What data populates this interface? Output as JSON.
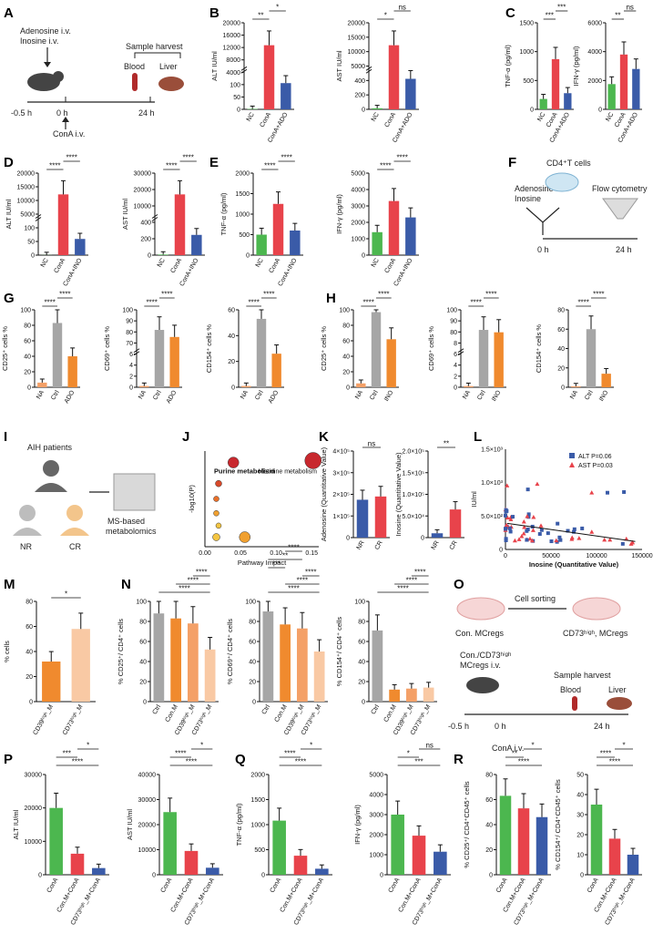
{
  "panel_letters": [
    "A",
    "B",
    "C",
    "D",
    "E",
    "F",
    "G",
    "H",
    "I",
    "J",
    "K",
    "L",
    "M",
    "N",
    "O",
    "P",
    "Q",
    "R"
  ],
  "colors": {
    "green": "#4cb74f",
    "red": "#e8434b",
    "blue": "#3a5ba8",
    "gray": "#a6a6a6",
    "orange": "#f08a2e",
    "peach": "#f4a067",
    "light": "#f9c9a4",
    "yellow": "#f4c542",
    "darkred": "#c8282e"
  },
  "panelA": {
    "drug": "Adenosine i.v.",
    "drug2": "Inosine i.v.",
    "harvest": "Sample harvest",
    "blood": "Blood",
    "liver": "Liver",
    "t1": "-0.5 h",
    "t2": "0 h",
    "t3": "24 h",
    "conA": "ConA  i.v."
  },
  "panelF": {
    "drug": "Adenosine",
    "drug2": "Inosine",
    "cells": "CD4⁺T cells",
    "flow": "Flow cytometry",
    "t1": "0 h",
    "t2": "24 h"
  },
  "panelI": {
    "title": "AIH patients",
    "nr": "NR",
    "cr": "CR",
    "ms": "MS-based",
    "ms2": "metabolomics"
  },
  "panelO": {
    "sort": "Cell sorting",
    "a": "Con. MCregs",
    "b": "CD73ʰⁱᵍʰ, MCregs",
    "c": "Con./CD73ʰⁱᵍʰ",
    "d": "MCregs i.v.",
    "harvest": "Sample harvest",
    "blood": "Blood",
    "liver": "Liver",
    "t1": "-0.5 h",
    "t2": "0 h",
    "t3": "24 h",
    "conA": "ConA  i.v."
  },
  "chart_data": [
    {
      "id": "B1",
      "type": "bar",
      "ylabel": "ALT IU/ml",
      "categories": [
        "NC",
        "ConA",
        "ConA+ADO"
      ],
      "values": [
        60,
        8800,
        3600
      ],
      "ticks_top": [
        "4000",
        "8000",
        "12000",
        "16000",
        "20000"
      ],
      "ticks_bottom": [
        "0",
        "50",
        "100"
      ],
      "sig": [
        "**",
        "*"
      ]
    },
    {
      "id": "B2",
      "type": "bar",
      "ylabel": "AST IU/ml",
      "categories": [
        "NC",
        "ConA",
        "ConA+ADO"
      ],
      "values": [
        180,
        10500,
        5000
      ],
      "ticks_top": [
        "5000",
        "10000",
        "15000",
        "20000"
      ],
      "ticks_bottom": [
        "0",
        "200",
        "400"
      ],
      "sig": [
        "*",
        "ns"
      ]
    },
    {
      "id": "C1",
      "type": "bar",
      "ylabel": "TNF-α (pg/ml)",
      "categories": [
        "NC",
        "ConA",
        "ConA+ADO"
      ],
      "values": [
        180,
        870,
        280
      ],
      "ticks": [
        "0",
        "500",
        "1000",
        "1500"
      ],
      "ylim": [
        0,
        1500
      ],
      "sig": [
        "***",
        "***"
      ]
    },
    {
      "id": "C2",
      "type": "bar",
      "ylabel": "IFN-γ (pg/ml)",
      "categories": [
        "NC",
        "ConA",
        "ConA+ADO"
      ],
      "values": [
        1750,
        3800,
        2800
      ],
      "ticks": [
        "0",
        "2000",
        "4000",
        "6000"
      ],
      "ylim": [
        0,
        6000
      ],
      "sig": [
        "**",
        "ns"
      ]
    },
    {
      "id": "D1",
      "type": "bar",
      "ylabel": "ALT IU/ml",
      "categories": [
        "NC",
        "ConA",
        "ConA+INO"
      ],
      "values": [
        30,
        15000,
        4000
      ],
      "ticks_top": [
        "5000",
        "10000",
        "15000",
        "20000"
      ],
      "ticks_bottom": [
        "0",
        "50",
        "100"
      ],
      "sig": [
        "****",
        "****"
      ]
    },
    {
      "id": "D2",
      "type": "bar",
      "ylabel": "AST IU/ml",
      "categories": [
        "NC",
        "ConA",
        "ConA+INO"
      ],
      "values": [
        170,
        18000,
        6000
      ],
      "ticks_top": [
        "10000",
        "20000",
        "30000"
      ],
      "ticks_bottom": [
        "0",
        "200",
        "400"
      ],
      "sig": [
        "****",
        "****"
      ]
    },
    {
      "id": "E1",
      "type": "bar",
      "ylabel": "TNF-α (pg/ml)",
      "categories": [
        "NC",
        "ConA",
        "ConA+INO"
      ],
      "values": [
        500,
        1250,
        600
      ],
      "ticks": [
        "0",
        "500",
        "1000",
        "1500",
        "2000"
      ],
      "ylim": [
        0,
        2000
      ],
      "sig": [
        "****",
        "****"
      ]
    },
    {
      "id": "E2",
      "type": "bar",
      "ylabel": "IFN-γ (pg/ml)",
      "categories": [
        "NC",
        "ConA",
        "ConA+INO"
      ],
      "values": [
        1400,
        3300,
        2300
      ],
      "ticks": [
        "0",
        "1000",
        "2000",
        "3000",
        "4000",
        "5000"
      ],
      "ylim": [
        0,
        5000
      ],
      "sig": [
        "****",
        "****"
      ]
    },
    {
      "id": "G1",
      "type": "bar",
      "ylabel": "CD25⁺ cells %",
      "categories": [
        "NA",
        "Ctrl",
        "ADO"
      ],
      "values": [
        6,
        83,
        40
      ],
      "ticks": [
        "0",
        "20",
        "40",
        "60",
        "80",
        "100"
      ],
      "ylim": [
        0,
        100
      ],
      "sig": [
        "****",
        "****"
      ]
    },
    {
      "id": "G2",
      "type": "bar",
      "ylabel": "CD69⁺ cells %",
      "categories": [
        "NA",
        "Ctrl",
        "ADO"
      ],
      "values": [
        2,
        89,
        78
      ],
      "ticks_top": [
        "70",
        "80",
        "90",
        "100"
      ],
      "ticks_bottom": [
        "0",
        "2",
        "4",
        "6"
      ],
      "sig": [
        "****",
        "****"
      ]
    },
    {
      "id": "G3",
      "type": "bar",
      "ylabel": "CD154⁺ cells %",
      "categories": [
        "NA",
        "Ctrl",
        "ADO"
      ],
      "values": [
        1,
        53,
        26
      ],
      "ticks": [
        "0",
        "20",
        "40",
        "60"
      ],
      "ylim": [
        0,
        60
      ],
      "sig": [
        "****",
        "****"
      ]
    },
    {
      "id": "H1",
      "type": "bar",
      "ylabel": "CD25⁺ cells %",
      "categories": [
        "NA",
        "Ctrl",
        "INO"
      ],
      "values": [
        5,
        97,
        62
      ],
      "ticks": [
        "0",
        "20",
        "40",
        "60",
        "80",
        "100"
      ],
      "ylim": [
        0,
        100
      ],
      "sig": [
        "****",
        "****"
      ]
    },
    {
      "id": "H2",
      "type": "bar",
      "ylabel": "CD69⁺ cells %",
      "categories": [
        "NA",
        "Ctrl",
        "INO"
      ],
      "values": [
        2,
        96,
        92
      ],
      "ticks_top": [
        "80",
        "90",
        "100"
      ],
      "ticks_bottom": [
        "0",
        "2",
        "4",
        "6",
        "8"
      ],
      "sig": [
        "****",
        "****"
      ]
    },
    {
      "id": "H3",
      "type": "bar",
      "ylabel": "CD154⁺ cells %",
      "categories": [
        "NA",
        "Ctrl",
        "INO"
      ],
      "values": [
        1,
        60,
        14
      ],
      "ticks": [
        "0",
        "20",
        "40",
        "60",
        "80"
      ],
      "ylim": [
        0,
        80
      ],
      "sig": [
        "****",
        "****"
      ]
    },
    {
      "id": "J",
      "type": "scatter",
      "xlabel": "Pathway Impact",
      "ylabel": "-log10(P)",
      "xticks": [
        "0.00",
        "0.05",
        "0.10",
        "0.15"
      ],
      "labels": [
        "Histidine metabolism",
        "Purine metabolism"
      ]
    },
    {
      "id": "K1",
      "type": "bar",
      "ylabel": "Adenosine (Quantitative Value)",
      "categories": [
        "NR",
        "CR"
      ],
      "values": [
        175000,
        190000
      ],
      "ticks": [
        "0",
        "1×10⁵",
        "2×10⁵",
        "3×10⁵",
        "4×10⁵"
      ],
      "ylim": [
        0,
        400000
      ],
      "sig": [
        "ns"
      ]
    },
    {
      "id": "K2",
      "type": "bar",
      "ylabel": "Inosine (Quantitative Value)",
      "categories": [
        "NR",
        "CR"
      ],
      "values": [
        10000,
        65000
      ],
      "ticks": [
        "0",
        "5.0×10⁴",
        "1.0×10⁵",
        "1.5×10⁵",
        "2.0×10⁵"
      ],
      "ylim": [
        0,
        200000
      ],
      "sig": [
        "**"
      ]
    },
    {
      "id": "L",
      "type": "scatter",
      "xlabel": "Inosine (Quantitative Value)",
      "ylabel": "IU/ml",
      "xticks": [
        "0",
        "50000",
        "100000",
        "150000"
      ],
      "yticks": [
        "0",
        "5.0×10²",
        "1.0×10³",
        "1.5×10³"
      ],
      "legend": [
        "ALT P=0.06",
        "AST P=0.03"
      ]
    },
    {
      "id": "M",
      "type": "bar",
      "ylabel": "% cells",
      "categories": [
        "CD39ʰⁱᵍʰ_M",
        "CD73ʰⁱᵍʰ_M"
      ],
      "values": [
        32,
        58
      ],
      "ticks": [
        "0",
        "20",
        "40",
        "60",
        "80"
      ],
      "ylim": [
        0,
        80
      ],
      "sig": [
        "*"
      ]
    },
    {
      "id": "N1",
      "type": "bar",
      "ylabel": "% CD25⁺/ CD4⁺ cells",
      "categories": [
        "Ctrl",
        "Con.M",
        "CD39ʰⁱᵍʰ_M",
        "CD73ʰⁱᵍʰ_M"
      ],
      "values": [
        88,
        83,
        78,
        52
      ],
      "ticks": [
        "0",
        "20",
        "40",
        "60",
        "80",
        "100"
      ],
      "ylim": [
        0,
        100
      ],
      "sig": [
        "****",
        "****",
        "****"
      ]
    },
    {
      "id": "N2",
      "type": "bar",
      "ylabel": "% CD69⁺/ CD4⁺ cells",
      "categories": [
        "Ctrl",
        "Con.M",
        "CD39ʰⁱᵍʰ_M",
        "CD73ʰⁱᵍʰ_M"
      ],
      "values": [
        90,
        77,
        73,
        50
      ],
      "ticks": [
        "0",
        "20",
        "40",
        "60",
        "80",
        "100"
      ],
      "ylim": [
        0,
        100
      ],
      "sig": [
        "****",
        "****",
        "****",
        "***",
        "**",
        "****"
      ]
    },
    {
      "id": "N3",
      "type": "bar",
      "ylabel": "% CD154⁺/ CD4⁺ cells",
      "categories": [
        "Ctrl",
        "Con.M",
        "CD39ʰⁱᵍʰ_M",
        "CD73ʰⁱᵍʰ_M"
      ],
      "values": [
        71,
        12,
        13,
        14
      ],
      "ticks": [
        "0",
        "20",
        "40",
        "60",
        "80",
        "100"
      ],
      "ylim": [
        0,
        100
      ],
      "sig": [
        "****",
        "****",
        "****"
      ]
    },
    {
      "id": "P1",
      "type": "bar",
      "ylabel": "ALT IU/ml",
      "categories": [
        "ConA",
        "Con.M+ConA",
        "CD73ʰⁱᵍʰ_M+ConA"
      ],
      "values": [
        20000,
        6300,
        2000
      ],
      "ticks": [
        "0",
        "10000",
        "20000",
        "30000"
      ],
      "ylim": [
        0,
        30000
      ],
      "sig": [
        "****",
        "***",
        "*"
      ]
    },
    {
      "id": "P2",
      "type": "bar",
      "ylabel": "AST IU/ml",
      "categories": [
        "ConA",
        "Con.M+ConA",
        "CD73ʰⁱᵍʰ_M+ConA"
      ],
      "values": [
        25000,
        9500,
        2800
      ],
      "ticks": [
        "0",
        "10000",
        "20000",
        "30000",
        "40000"
      ],
      "ylim": [
        0,
        40000
      ],
      "sig": [
        "****",
        "****",
        "*"
      ]
    },
    {
      "id": "Q1",
      "type": "bar",
      "ylabel": "TNF-α (pg/ml)",
      "categories": [
        "ConA",
        "Con.M+ConA",
        "CD73ʰⁱᵍʰ_M+ConA"
      ],
      "values": [
        1080,
        380,
        120
      ],
      "ticks": [
        "0",
        "500",
        "1000",
        "1500",
        "2000"
      ],
      "ylim": [
        0,
        2000
      ],
      "sig": [
        "****",
        "****",
        "*"
      ]
    },
    {
      "id": "Q2",
      "type": "bar",
      "ylabel": "IFN-γ (pg/ml)",
      "categories": [
        "ConA",
        "Con.M+ConA",
        "CD73ʰⁱᵍʰ_M+ConA"
      ],
      "values": [
        3000,
        1950,
        1150
      ],
      "ticks": [
        "0",
        "1000",
        "2000",
        "3000",
        "4000",
        "5000"
      ],
      "ylim": [
        0,
        5000
      ],
      "sig": [
        "***",
        "*",
        "ns"
      ]
    },
    {
      "id": "R1",
      "type": "bar",
      "ylabel": "% CD25⁺/ CD4⁺CD45⁺ cells",
      "categories": [
        "ConA",
        "Con.M+ConA",
        "CD73ʰⁱᵍʰ_M+ConA"
      ],
      "values": [
        63,
        53,
        46
      ],
      "ticks": [
        "0",
        "20",
        "40",
        "60",
        "80"
      ],
      "ylim": [
        0,
        80
      ],
      "sig": [
        "****",
        "**",
        "*"
      ]
    },
    {
      "id": "R2",
      "type": "bar",
      "ylabel": "% CD154⁺/ CD4⁺CD45⁺ cells",
      "categories": [
        "ConA",
        "Con.M+ConA",
        "CD73ʰⁱᵍʰ_M+ConA"
      ],
      "values": [
        35,
        18,
        10
      ],
      "ticks": [
        "0",
        "10",
        "20",
        "30",
        "40",
        "50"
      ],
      "ylim": [
        0,
        50
      ],
      "sig": [
        "****",
        "****",
        "*"
      ]
    }
  ]
}
